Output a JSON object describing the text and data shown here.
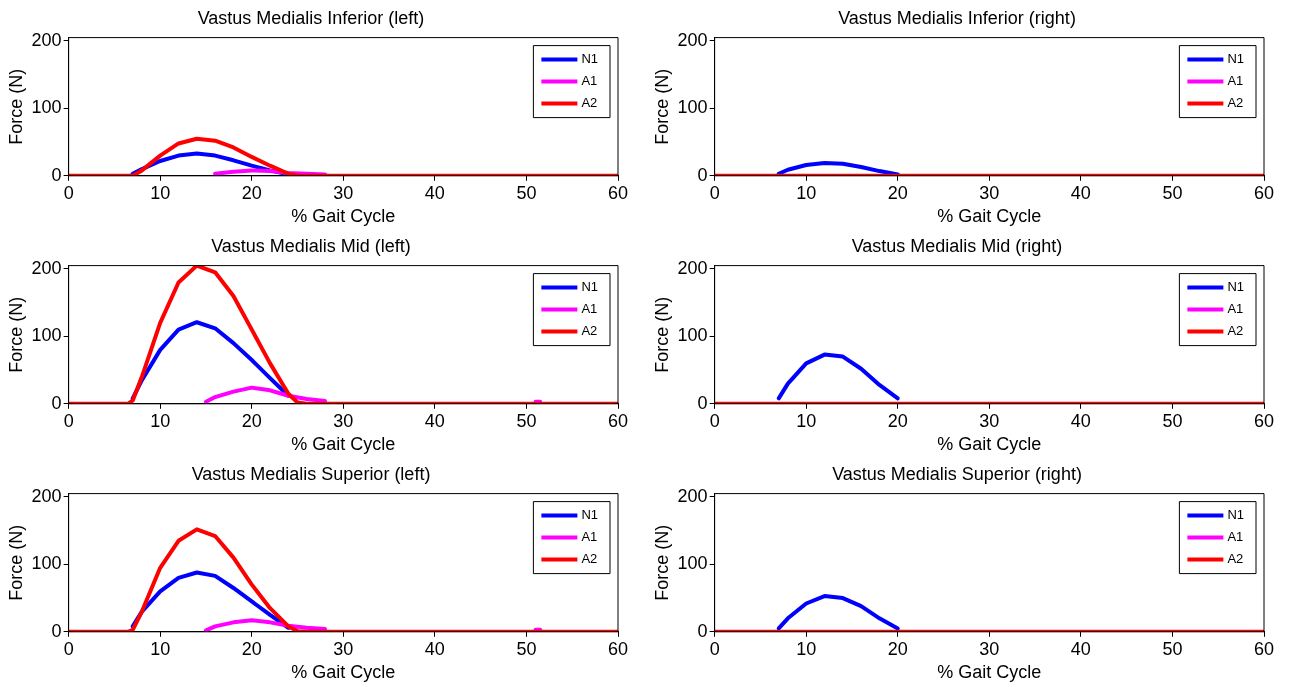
{
  "chart_data": [
    {
      "type": "line",
      "title": "Vastus Medialis Inferior (left)",
      "xlabel": "% Gait Cycle",
      "ylabel": "Force (N)",
      "xlim": [
        0,
        60
      ],
      "xticks": [
        0,
        10,
        20,
        30,
        40,
        50,
        60
      ],
      "ylim": [
        0,
        205
      ],
      "yticks": [
        0,
        100,
        200
      ],
      "legend": "top right",
      "series": [
        {
          "name": "N1",
          "color": "#0000ff",
          "x": [
            7,
            8,
            10,
            12,
            14,
            16,
            18,
            20,
            22,
            24
          ],
          "values": [
            3,
            10,
            22,
            30,
            33,
            30,
            23,
            15,
            8,
            2
          ]
        },
        {
          "name": "A1",
          "color": "#ff00ff",
          "x": [
            16,
            18,
            20,
            22,
            24,
            26,
            28
          ],
          "values": [
            3,
            6,
            8,
            7,
            4,
            3,
            2
          ]
        },
        {
          "name": "A2",
          "color": "#ff0000",
          "x": [
            0,
            7,
            8,
            10,
            12,
            14,
            16,
            18,
            20,
            22,
            24,
            25,
            60
          ],
          "values": [
            0,
            0,
            8,
            30,
            48,
            55,
            52,
            42,
            28,
            15,
            3,
            0,
            0
          ]
        }
      ]
    },
    {
      "type": "line",
      "title": "Vastus Medialis Inferior (right)",
      "xlabel": "% Gait Cycle",
      "ylabel": "Force (N)",
      "xlim": [
        0,
        60
      ],
      "xticks": [
        0,
        10,
        20,
        30,
        40,
        50,
        60
      ],
      "ylim": [
        0,
        205
      ],
      "yticks": [
        0,
        100,
        200
      ],
      "legend": "top right",
      "series": [
        {
          "name": "N1",
          "color": "#0000ff",
          "x": [
            7,
            8,
            10,
            12,
            14,
            16,
            18,
            20
          ],
          "values": [
            3,
            9,
            16,
            19,
            18,
            13,
            7,
            2
          ]
        },
        {
          "name": "A1",
          "color": "#ff00ff"
        },
        {
          "name": "A2",
          "color": "#ff0000",
          "x": [
            0,
            60
          ],
          "values": [
            0,
            0
          ]
        }
      ]
    },
    {
      "type": "line",
      "title": "Vastus Medialis Mid (left)",
      "xlabel": "% Gait Cycle",
      "ylabel": "Force (N)",
      "xlim": [
        0,
        60
      ],
      "xticks": [
        0,
        10,
        20,
        30,
        40,
        50,
        60
      ],
      "ylim": [
        0,
        205
      ],
      "yticks": [
        0,
        100,
        200
      ],
      "legend": "top right",
      "series": [
        {
          "name": "N1",
          "color": "#0000ff",
          "x": [
            7,
            8,
            10,
            12,
            14,
            16,
            18,
            20,
            22,
            24
          ],
          "values": [
            8,
            35,
            80,
            110,
            121,
            112,
            90,
            65,
            38,
            12
          ]
        },
        {
          "name": "A1",
          "color": "#ff00ff",
          "x": [
            15,
            16,
            18,
            20,
            22,
            24,
            26,
            28,
            30,
            51,
            51.5
          ],
          "values": [
            3,
            10,
            18,
            24,
            20,
            12,
            7,
            4,
            null,
            3,
            3
          ]
        },
        {
          "name": "A2",
          "color": "#ff0000",
          "x": [
            0,
            6.5,
            7,
            8,
            10,
            12,
            14,
            16,
            18,
            20,
            22,
            24,
            25,
            26,
            60
          ],
          "values": [
            0,
            0,
            5,
            40,
            120,
            180,
            205,
            195,
            160,
            110,
            60,
            15,
            2,
            0,
            0
          ]
        }
      ]
    },
    {
      "type": "line",
      "title": "Vastus Medialis Mid (right)",
      "xlabel": "% Gait Cycle",
      "ylabel": "Force (N)",
      "xlim": [
        0,
        60
      ],
      "xticks": [
        0,
        10,
        20,
        30,
        40,
        50,
        60
      ],
      "ylim": [
        0,
        205
      ],
      "yticks": [
        0,
        100,
        200
      ],
      "legend": "top right",
      "series": [
        {
          "name": "N1",
          "color": "#0000ff",
          "x": [
            7,
            8,
            10,
            12,
            14,
            16,
            18,
            20
          ],
          "values": [
            8,
            30,
            60,
            73,
            70,
            52,
            28,
            8
          ]
        },
        {
          "name": "A1",
          "color": "#ff00ff"
        },
        {
          "name": "A2",
          "color": "#ff0000",
          "x": [
            0,
            60
          ],
          "values": [
            0,
            0
          ]
        }
      ]
    },
    {
      "type": "line",
      "title": "Vastus Medialis Superior (left)",
      "xlabel": "% Gait Cycle",
      "ylabel": "Force (N)",
      "xlim": [
        0,
        60
      ],
      "xticks": [
        0,
        10,
        20,
        30,
        40,
        50,
        60
      ],
      "ylim": [
        0,
        205
      ],
      "yticks": [
        0,
        100,
        200
      ],
      "legend": "top right",
      "series": [
        {
          "name": "N1",
          "color": "#0000ff",
          "x": [
            7,
            8,
            10,
            12,
            14,
            16,
            18,
            20,
            22,
            24
          ],
          "values": [
            8,
            30,
            60,
            80,
            88,
            83,
            65,
            45,
            25,
            6
          ]
        },
        {
          "name": "A1",
          "color": "#ff00ff",
          "x": [
            15,
            16,
            18,
            20,
            22,
            24,
            26,
            28,
            30,
            51,
            51.5
          ],
          "values": [
            2,
            8,
            14,
            17,
            14,
            9,
            6,
            4,
            null,
            3,
            3
          ]
        },
        {
          "name": "A2",
          "color": "#ff0000",
          "x": [
            0,
            6.5,
            7,
            8,
            10,
            12,
            14,
            16,
            18,
            20,
            22,
            24,
            25,
            26,
            60
          ],
          "values": [
            0,
            0,
            3,
            30,
            95,
            135,
            152,
            142,
            110,
            70,
            35,
            8,
            1,
            0,
            0
          ]
        }
      ]
    },
    {
      "type": "line",
      "title": "Vastus Medialis Superior (right)",
      "xlabel": "% Gait Cycle",
      "ylabel": "Force (N)",
      "xlim": [
        0,
        60
      ],
      "xticks": [
        0,
        10,
        20,
        30,
        40,
        50,
        60
      ],
      "ylim": [
        0,
        205
      ],
      "yticks": [
        0,
        100,
        200
      ],
      "legend": "top right",
      "series": [
        {
          "name": "N1",
          "color": "#0000ff",
          "x": [
            7,
            8,
            10,
            12,
            14,
            16,
            18,
            20
          ],
          "values": [
            5,
            20,
            42,
            53,
            50,
            38,
            20,
            5
          ]
        },
        {
          "name": "A1",
          "color": "#ff00ff"
        },
        {
          "name": "A2",
          "color": "#ff0000",
          "x": [
            0,
            60
          ],
          "values": [
            0,
            0
          ]
        }
      ]
    }
  ]
}
